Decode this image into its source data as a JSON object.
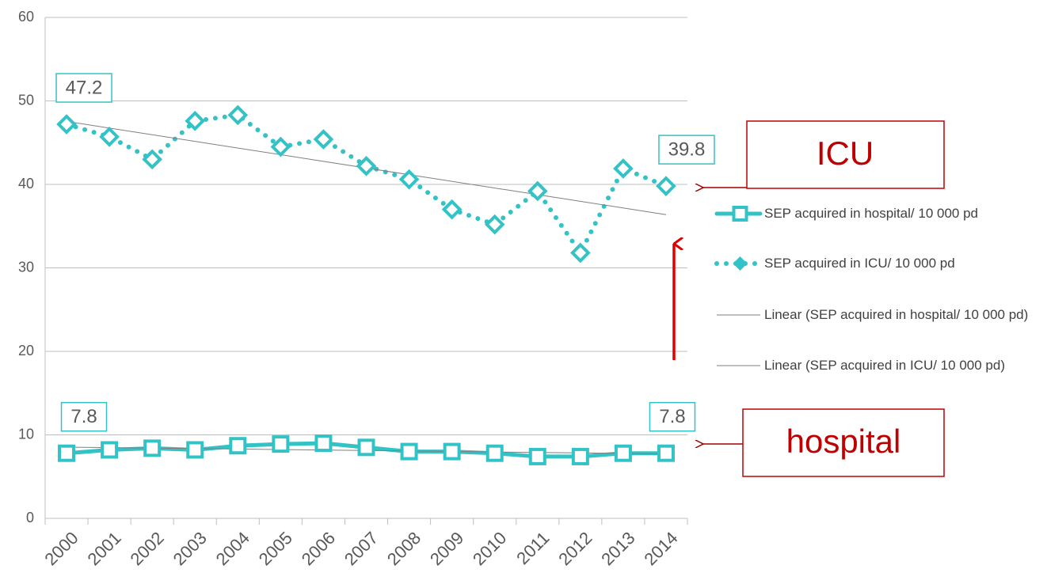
{
  "chart_data": {
    "type": "line",
    "categories": [
      "2000",
      "2001",
      "2002",
      "2003",
      "2004",
      "2005",
      "2006",
      "2007",
      "2008",
      "2009",
      "2010",
      "2011",
      "2012",
      "2013",
      "2014"
    ],
    "series": [
      {
        "name": "SEP acquired in hospital/ 10 000 pd",
        "color": "#33c3c6",
        "style": "solid",
        "marker": "square",
        "values": [
          7.8,
          8.2,
          8.4,
          8.2,
          8.7,
          8.9,
          9.0,
          8.5,
          8.0,
          8.0,
          7.8,
          7.4,
          7.4,
          7.8,
          7.8
        ],
        "value_labels": [
          "7.8",
          null,
          null,
          null,
          null,
          null,
          null,
          null,
          null,
          null,
          null,
          null,
          null,
          null,
          "7.8"
        ],
        "trendline": "Linear (SEP acquired in hospital/ 10 000 pd)"
      },
      {
        "name": "SEP acquired in ICU/ 10 000 pd",
        "color": "#33c3c6",
        "style": "dotted",
        "marker": "diamond",
        "values": [
          47.2,
          45.7,
          43.0,
          47.6,
          48.3,
          44.5,
          45.4,
          42.2,
          40.6,
          37.0,
          35.2,
          39.2,
          31.8,
          41.9,
          39.8
        ],
        "value_labels": [
          "47.2",
          null,
          null,
          null,
          null,
          null,
          null,
          null,
          null,
          null,
          null,
          null,
          null,
          null,
          "39.8"
        ],
        "trendline": "Linear (SEP acquired in ICU/ 10 000 pd)"
      }
    ],
    "ylim": [
      0,
      60
    ],
    "yticks": [
      0,
      10,
      20,
      30,
      40,
      50,
      60
    ],
    "grid": true,
    "annotations": [
      "ICU",
      "hospital"
    ]
  }
}
